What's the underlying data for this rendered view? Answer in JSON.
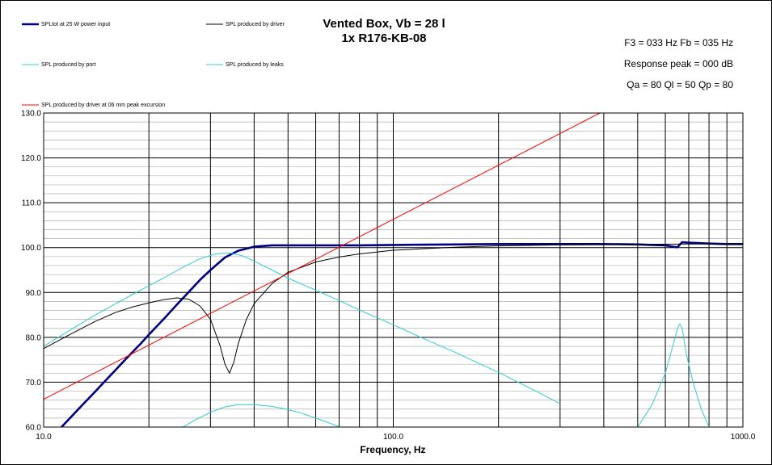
{
  "chart_data": {
    "type": "line",
    "title": "Vented Box, Vb = 28 l",
    "subtitle": "1x R176-KB-08",
    "xlabel": "Frequency, Hz",
    "ylabel": "",
    "x_scale": "log",
    "xlim": [
      10,
      1000
    ],
    "ylim": [
      60,
      130
    ],
    "x_ticks": [
      "10.0",
      "100.0",
      "1000.0"
    ],
    "y_ticks": [
      "60.0",
      "70.0",
      "80.0",
      "90.0",
      "100.0",
      "110.0",
      "120.0",
      "130.0"
    ],
    "grid": true,
    "info": [
      "F3 = 033 Hz  Fb = 035 Hz",
      "Response  peak = 000 dB",
      "Qa = 80  Ql = 50  Qp = 80"
    ],
    "series": [
      {
        "name": "SPLtot at 25 W power input",
        "color": "#000080",
        "x": [
          10,
          11,
          12,
          13,
          14,
          15,
          16,
          17,
          18,
          19,
          20,
          22,
          24,
          26,
          28,
          30,
          33,
          36,
          40,
          45,
          50,
          60,
          80,
          100,
          150,
          200,
          300,
          400,
          500,
          600,
          630,
          650,
          670,
          700,
          800,
          900,
          1000
        ],
        "y": [
          55.5,
          59.2,
          62.3,
          65.2,
          67.8,
          70.3,
          72.6,
          74.8,
          76.8,
          78.7,
          80.6,
          84,
          87.2,
          90.1,
          92.8,
          95,
          97.8,
          99.3,
          100.2,
          100.5,
          100.5,
          100.5,
          100.5,
          100.6,
          100.7,
          100.8,
          100.8,
          100.8,
          100.7,
          100.5,
          100.2,
          100.1,
          101.2,
          101.1,
          100.9,
          100.8,
          100.8
        ]
      },
      {
        "name": "SPL produced by driver",
        "color": "#000000",
        "x": [
          10,
          12,
          14,
          16,
          18,
          20,
          22,
          24,
          26,
          28,
          30,
          32,
          33,
          34,
          35,
          36,
          38,
          40,
          45,
          50,
          60,
          70,
          80,
          100,
          150,
          200,
          300,
          500,
          700,
          1000
        ],
        "y": [
          77.5,
          80.8,
          83.5,
          85.5,
          86.8,
          87.7,
          88.4,
          88.8,
          88.5,
          87,
          84,
          78,
          74,
          72,
          74.5,
          78.5,
          84,
          87.5,
          92,
          94.5,
          96.8,
          97.9,
          98.6,
          99.4,
          100.1,
          100.4,
          100.6,
          100.7,
          100.8,
          100.8
        ]
      },
      {
        "name": "SPL produced by port",
        "color": "#33cccc",
        "x": [
          10,
          12,
          14,
          16,
          18,
          20,
          22,
          25,
          28,
          31,
          34,
          37,
          40,
          45,
          50,
          60,
          70,
          80,
          100,
          120,
          150,
          180,
          200,
          250,
          300
        ],
        "y": [
          78,
          81.8,
          84.9,
          87.4,
          89.6,
          91.5,
          93.2,
          95.6,
          97.5,
          98.6,
          98.8,
          98.2,
          97,
          95,
          93.2,
          90.5,
          88.2,
          86.1,
          82.8,
          80,
          76.7,
          73.8,
          72.2,
          68.4,
          65.2
        ]
      },
      {
        "name": "SPL produced by leaks",
        "color": "#33cccc",
        "x": [
          25,
          27,
          30,
          33,
          36,
          40,
          45,
          50,
          55,
          60,
          65,
          70,
          75
        ],
        "y": [
          60,
          61.5,
          63.3,
          64.5,
          65,
          65,
          64.6,
          63.9,
          63,
          62,
          61,
          60.1,
          59.3
        ]
      },
      {
        "name": "SPL produced by leaks",
        "color": "#33cccc",
        "x": [
          500,
          550,
          600,
          630,
          650,
          660,
          670,
          690,
          720,
          760,
          800
        ],
        "y": [
          60,
          65,
          72,
          78,
          82,
          83,
          82,
          76,
          70,
          64,
          60
        ]
      },
      {
        "name": "SPL produced by driver at 06 mm peak excursion",
        "color": "#ff0000",
        "x": [
          10,
          390
        ],
        "y": [
          66.2,
          130
        ]
      }
    ]
  }
}
